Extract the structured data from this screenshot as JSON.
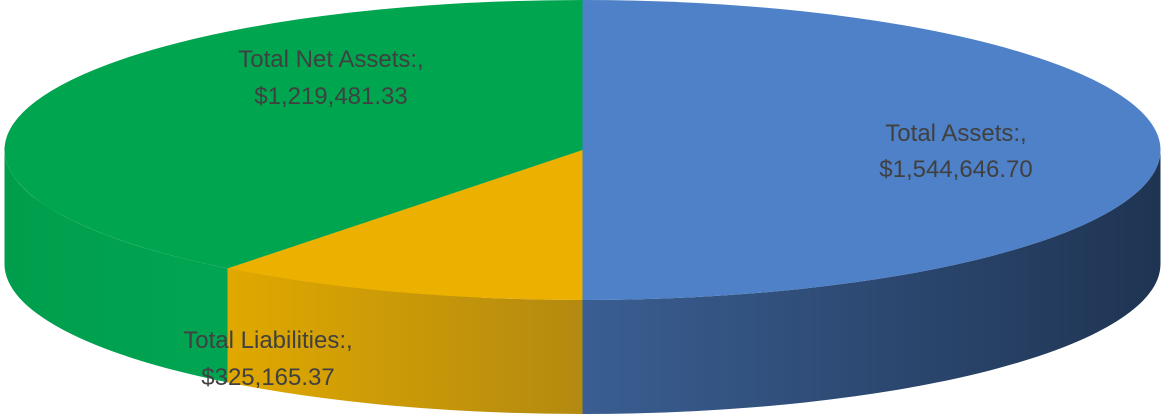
{
  "chart_data": {
    "type": "pie",
    "style": "3d",
    "title": "",
    "legend": "none",
    "slices": [
      {
        "category": "Total Assets",
        "value": 1544646.7,
        "label_line1": "Total Assets:,",
        "label_line2": "$1,544,646.70",
        "color": "#4E81C8",
        "side_color": "#263E63"
      },
      {
        "category": "Total Liabilities",
        "value": 325165.37,
        "label_line1": "Total Liabilities:,",
        "label_line2": "$325,165.37",
        "color": "#EBB000",
        "side_color": "#B88C08"
      },
      {
        "category": "Total Net Assets",
        "value": 1219481.33,
        "label_line1": "Total Net Assets:,",
        "label_line2": "$1,219,481.33",
        "color": "#00A550",
        "side_color": "#008A44"
      }
    ]
  }
}
